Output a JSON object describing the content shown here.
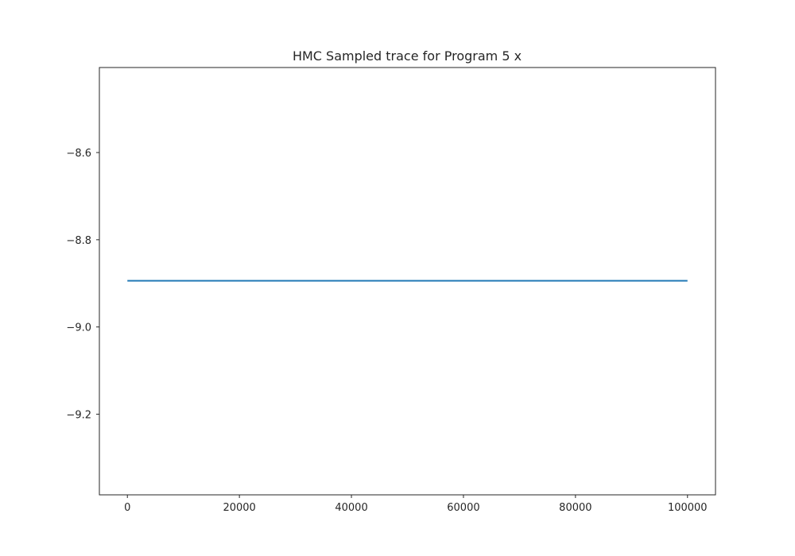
{
  "chart_data": {
    "type": "line",
    "title": "HMC Sampled trace for Program 5 x",
    "xlabel": "",
    "ylabel": "",
    "xlim": [
      -5000,
      105000
    ],
    "ylim": [
      -9.385,
      -8.405
    ],
    "xticks": [
      0,
      20000,
      40000,
      60000,
      80000,
      100000
    ],
    "xtick_labels": [
      "0",
      "20000",
      "40000",
      "60000",
      "80000",
      "100000"
    ],
    "yticks": [
      -8.6,
      -8.8,
      -9.0,
      -9.2
    ],
    "ytick_labels": [
      "−8.6",
      "−8.8",
      "−9.0",
      "−9.2"
    ],
    "grid": false,
    "legend": "none",
    "series": [
      {
        "color": "#1f77b4",
        "x": [
          0,
          100000
        ],
        "y": [
          -8.894,
          -8.894
        ]
      }
    ]
  }
}
